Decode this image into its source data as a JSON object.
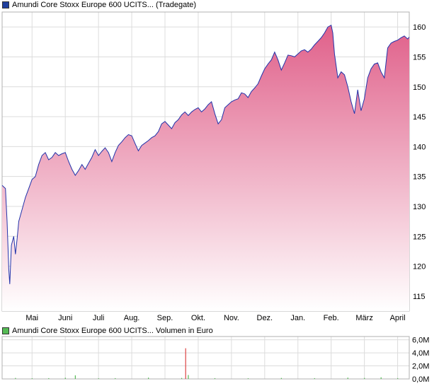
{
  "legend": {
    "price_label": "Amundi Core Stoxx Europe 600 UCITS... (Tradegate)",
    "price_color": "#1f3f9e",
    "volume_label": "Amundi Core Stoxx Europe 600 UCITS... Volumen in Euro",
    "volume_color": "#55bb55"
  },
  "chart_data": [
    {
      "type": "area",
      "title": "Amundi Core Stoxx Europe 600 UCITS... (Tradegate)",
      "line_color": "#2233aa",
      "fill_top_color": "#e0608a",
      "fill_bottom_color": "#ffffff",
      "grid": true,
      "ylim": [
        112.5,
        162.5
      ],
      "y_ticks": [
        115,
        120,
        125,
        130,
        135,
        140,
        145,
        150,
        155,
        160
      ],
      "y_tick_labels": [
        "115",
        "120",
        "125",
        "130",
        "135",
        "140",
        "145",
        "150",
        "155",
        "160"
      ],
      "x_ticks": [
        "Mai",
        "Juni",
        "Juli",
        "Aug.",
        "Sep.",
        "Okt.",
        "Nov.",
        "Dez.",
        "Jan.",
        "Feb.",
        "März",
        "April"
      ],
      "x_tick_months_index": [
        1,
        2,
        3,
        4,
        5,
        6,
        7,
        8,
        9,
        10,
        11,
        12
      ],
      "x_range_months": [
        0.1,
        12.35
      ],
      "series": [
        {
          "x": [
            0.1,
            0.2,
            0.25,
            0.3,
            0.33,
            0.38,
            0.45,
            0.5,
            0.55,
            0.6,
            0.7,
            0.8,
            0.9,
            1.0,
            1.1,
            1.2,
            1.3,
            1.4,
            1.5,
            1.6,
            1.7,
            1.8,
            1.9,
            2.0,
            2.1,
            2.2,
            2.3,
            2.4,
            2.5,
            2.6,
            2.7,
            2.8,
            2.9,
            3.0,
            3.1,
            3.2,
            3.3,
            3.4,
            3.5,
            3.6,
            3.7,
            3.8,
            3.9,
            4.0,
            4.1,
            4.2,
            4.3,
            4.4,
            4.5,
            4.6,
            4.7,
            4.8,
            4.9,
            5.0,
            5.1,
            5.2,
            5.3,
            5.4,
            5.5,
            5.6,
            5.7,
            5.8,
            5.9,
            6.0,
            6.1,
            6.2,
            6.3,
            6.4,
            6.5,
            6.6,
            6.7,
            6.8,
            6.9,
            7.0,
            7.1,
            7.2,
            7.3,
            7.4,
            7.5,
            7.6,
            7.7,
            7.8,
            7.9,
            8.0,
            8.1,
            8.2,
            8.3,
            8.4,
            8.5,
            8.6,
            8.7,
            8.8,
            8.9,
            9.0,
            9.1,
            9.2,
            9.3,
            9.4,
            9.5,
            9.6,
            9.7,
            9.8,
            9.9,
            10.0,
            10.05,
            10.1,
            10.2,
            10.3,
            10.4,
            10.5,
            10.6,
            10.7,
            10.8,
            10.9,
            11.0,
            11.1,
            11.2,
            11.3,
            11.4,
            11.5,
            11.6,
            11.7,
            11.8,
            11.9,
            12.0,
            12.1,
            12.2,
            12.3,
            12.35
          ],
          "y": [
            133.5,
            133.0,
            127.5,
            119.5,
            117.0,
            123.5,
            125.0,
            122.0,
            124.5,
            127.5,
            129.5,
            131.5,
            133.0,
            134.5,
            135.0,
            137.0,
            138.5,
            139.0,
            137.8,
            138.2,
            139.0,
            138.5,
            138.8,
            139.0,
            137.5,
            136.2,
            135.2,
            136.0,
            137.0,
            136.2,
            137.2,
            138.2,
            139.5,
            138.5,
            139.2,
            139.8,
            139.0,
            137.5,
            139.0,
            140.2,
            140.8,
            141.5,
            142.0,
            141.8,
            140.5,
            139.3,
            140.2,
            140.6,
            141.0,
            141.5,
            141.8,
            142.5,
            143.8,
            144.2,
            143.6,
            143.0,
            144.0,
            144.5,
            145.3,
            145.8,
            145.2,
            145.8,
            146.2,
            146.5,
            145.8,
            146.3,
            147.0,
            147.5,
            145.5,
            143.8,
            144.5,
            146.5,
            147.0,
            147.5,
            147.8,
            148.0,
            149.0,
            148.8,
            148.2,
            149.2,
            149.8,
            150.5,
            151.8,
            153.0,
            153.8,
            154.5,
            155.8,
            154.5,
            152.8,
            154.0,
            155.3,
            155.2,
            155.0,
            155.5,
            156.0,
            156.2,
            155.8,
            156.3,
            157.0,
            157.6,
            158.2,
            159.0,
            160.0,
            160.3,
            159.0,
            155.5,
            151.5,
            152.5,
            152.0,
            150.0,
            147.5,
            145.5,
            149.5,
            146.0,
            148.0,
            151.5,
            153.0,
            153.8,
            154.0,
            152.5,
            151.5,
            156.5,
            157.3,
            157.6,
            157.8,
            158.2,
            158.5,
            158.0,
            158.3
          ]
        }
      ]
    },
    {
      "type": "bar",
      "title": "Amundi Core Stoxx Europe 600 UCITS... Volumen in Euro",
      "bar_color": "#55bb55",
      "highlight_color": "#dd4444",
      "grid": true,
      "ylim": [
        0,
        6.5
      ],
      "y_ticks": [
        0,
        2,
        4,
        6
      ],
      "y_tick_labels": [
        "0,0M",
        "2,0M",
        "4,0M",
        "6,0M"
      ],
      "volume_unit": "M Euro",
      "bars": [
        {
          "x": 0.5,
          "value": 0.15
        },
        {
          "x": 1.0,
          "value": 0.1
        },
        {
          "x": 1.5,
          "value": 0.12
        },
        {
          "x": 2.0,
          "value": 0.18
        },
        {
          "x": 2.3,
          "value": 0.55
        },
        {
          "x": 3.0,
          "value": 0.1
        },
        {
          "x": 3.5,
          "value": 0.12
        },
        {
          "x": 4.5,
          "value": 0.2
        },
        {
          "x": 5.5,
          "value": 0.15
        },
        {
          "x": 5.62,
          "value": 4.7
        },
        {
          "x": 5.7,
          "value": 0.6
        },
        {
          "x": 6.5,
          "value": 0.12
        },
        {
          "x": 7.5,
          "value": 0.1
        },
        {
          "x": 8.5,
          "value": 0.15
        },
        {
          "x": 9.5,
          "value": 0.12
        },
        {
          "x": 10.5,
          "value": 0.2
        },
        {
          "x": 11.0,
          "value": 0.15
        },
        {
          "x": 11.5,
          "value": 0.25
        },
        {
          "x": 12.0,
          "value": 0.12
        }
      ]
    }
  ]
}
